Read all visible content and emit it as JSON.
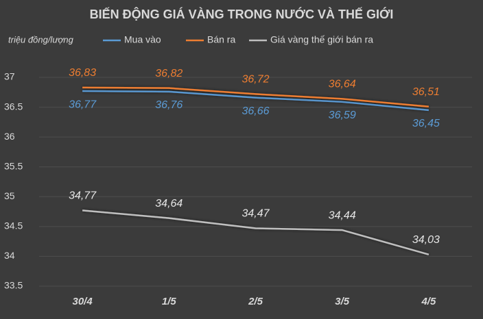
{
  "chart_data": {
    "type": "line",
    "title": "BIẾN ĐỘNG GIÁ VÀNG TRONG NƯỚC VÀ THẾ GIỚI",
    "y_axis_label": "triệu đồng/lượng",
    "categories": [
      "30/4",
      "1/5",
      "2/5",
      "3/5",
      "4/5"
    ],
    "series": [
      {
        "name": "Mua vào",
        "color": "#5b9bd5",
        "values": [
          36.77,
          36.76,
          36.66,
          36.59,
          36.45
        ],
        "value_labels": [
          "36,77",
          "36,76",
          "36,66",
          "36,59",
          "36,45"
        ]
      },
      {
        "name": "Bán ra",
        "color": "#ed7d31",
        "values": [
          36.83,
          36.82,
          36.72,
          36.64,
          36.51
        ],
        "value_labels": [
          "36,83",
          "36,82",
          "36,72",
          "36,64",
          "36,51"
        ]
      },
      {
        "name": "Giá vàng thế giới bán ra",
        "color": "#bfbfbf",
        "values": [
          34.77,
          34.64,
          34.47,
          34.44,
          34.03
        ],
        "value_labels": [
          "34,77",
          "34,64",
          "34,47",
          "34,44",
          "34,03"
        ]
      }
    ],
    "ylim": [
      33.5,
      37
    ],
    "yticks": [
      33.5,
      34,
      34.5,
      35,
      35.5,
      36,
      36.5,
      37
    ],
    "grid": true
  }
}
